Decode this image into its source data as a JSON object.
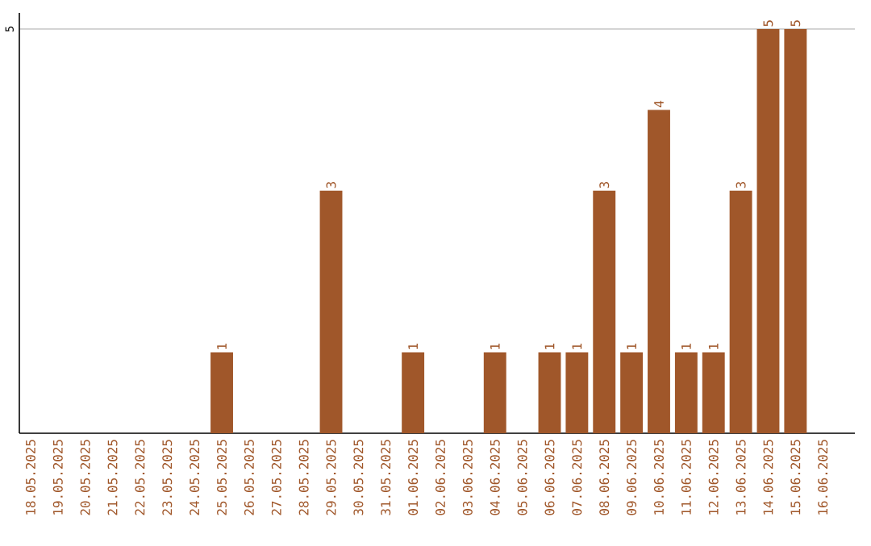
{
  "chart_data": {
    "type": "bar",
    "categories": [
      "18.05.2025",
      "19.05.2025",
      "20.05.2025",
      "21.05.2025",
      "22.05.2025",
      "23.05.2025",
      "24.05.2025",
      "25.05.2025",
      "26.05.2025",
      "27.05.2025",
      "28.05.2025",
      "29.05.2025",
      "30.05.2025",
      "31.05.2025",
      "01.06.2025",
      "02.06.2025",
      "03.06.2025",
      "04.06.2025",
      "05.06.2025",
      "06.06.2025",
      "07.06.2025",
      "08.06.2025",
      "09.06.2025",
      "10.06.2025",
      "11.06.2025",
      "12.06.2025",
      "13.06.2025",
      "14.06.2025",
      "15.06.2025",
      "16.06.2025"
    ],
    "values": [
      0,
      0,
      0,
      0,
      0,
      0,
      0,
      1,
      0,
      0,
      0,
      3,
      0,
      0,
      1,
      0,
      0,
      1,
      0,
      1,
      1,
      3,
      1,
      4,
      1,
      1,
      3,
      5,
      5,
      0
    ],
    "value_labels": [
      null,
      null,
      null,
      null,
      null,
      null,
      null,
      "1",
      null,
      null,
      null,
      "3",
      null,
      null,
      "1",
      null,
      null,
      "1",
      null,
      "1",
      "1",
      "3",
      "1",
      "4",
      "1",
      "1",
      "3",
      "5",
      "5",
      null
    ],
    "color": "#a0572a",
    "ylim": [
      0,
      5.2
    ],
    "yticks": [
      5
    ],
    "grid": "y"
  }
}
